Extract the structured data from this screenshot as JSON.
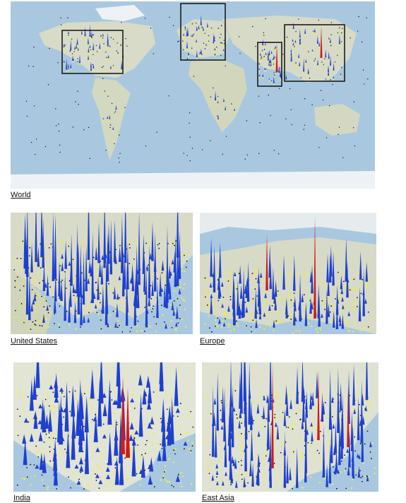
{
  "captions": {
    "world": "World",
    "united_states": "United States",
    "europe": "Europe",
    "india": "India",
    "east_asia": "East Asia"
  },
  "colors": {
    "ocean": "#a9c8e0",
    "land": "#d9dcc8",
    "population_peak": "#1f3fd1",
    "highest_peak": "#d01a1a",
    "low_density": "#f2ee3a",
    "sparse_points": "#111111",
    "region_box": "#111111"
  },
  "icons": {
    "peak": "population-spike-icon",
    "region_outline": "region-box-icon"
  }
}
